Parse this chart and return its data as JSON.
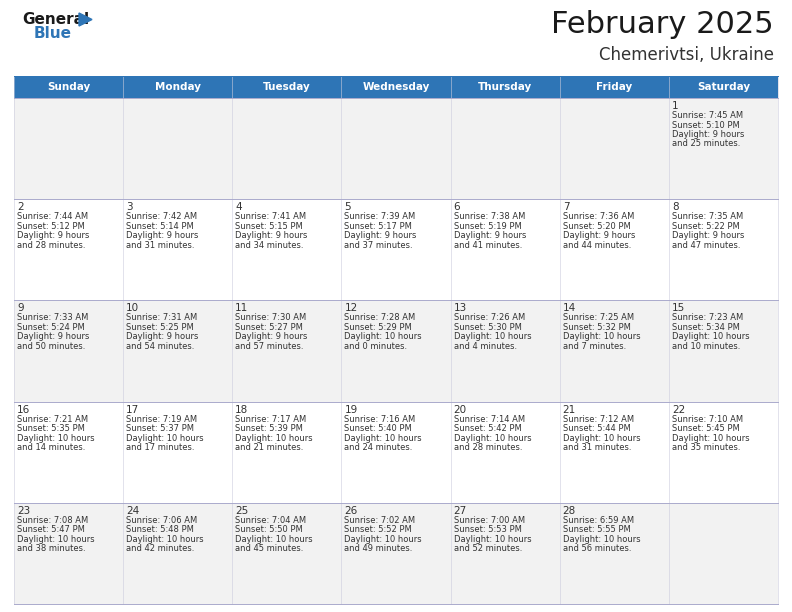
{
  "title": "February 2025",
  "subtitle": "Chemerivtsi, Ukraine",
  "header_bg": "#2E75B6",
  "header_text_color": "#FFFFFF",
  "row_bg_odd": "#F2F2F2",
  "row_bg_even": "#FFFFFF",
  "text_color": "#333333",
  "separator_color": "#AAAACC",
  "days_of_week": [
    "Sunday",
    "Monday",
    "Tuesday",
    "Wednesday",
    "Thursday",
    "Friday",
    "Saturday"
  ],
  "calendar_data": [
    [
      null,
      null,
      null,
      null,
      null,
      null,
      {
        "day": "1",
        "sunrise": "7:45 AM",
        "sunset": "5:10 PM",
        "daylight_h": "9 hours",
        "daylight_m": "and 25 minutes."
      }
    ],
    [
      {
        "day": "2",
        "sunrise": "7:44 AM",
        "sunset": "5:12 PM",
        "daylight_h": "9 hours",
        "daylight_m": "and 28 minutes."
      },
      {
        "day": "3",
        "sunrise": "7:42 AM",
        "sunset": "5:14 PM",
        "daylight_h": "9 hours",
        "daylight_m": "and 31 minutes."
      },
      {
        "day": "4",
        "sunrise": "7:41 AM",
        "sunset": "5:15 PM",
        "daylight_h": "9 hours",
        "daylight_m": "and 34 minutes."
      },
      {
        "day": "5",
        "sunrise": "7:39 AM",
        "sunset": "5:17 PM",
        "daylight_h": "9 hours",
        "daylight_m": "and 37 minutes."
      },
      {
        "day": "6",
        "sunrise": "7:38 AM",
        "sunset": "5:19 PM",
        "daylight_h": "9 hours",
        "daylight_m": "and 41 minutes."
      },
      {
        "day": "7",
        "sunrise": "7:36 AM",
        "sunset": "5:20 PM",
        "daylight_h": "9 hours",
        "daylight_m": "and 44 minutes."
      },
      {
        "day": "8",
        "sunrise": "7:35 AM",
        "sunset": "5:22 PM",
        "daylight_h": "9 hours",
        "daylight_m": "and 47 minutes."
      }
    ],
    [
      {
        "day": "9",
        "sunrise": "7:33 AM",
        "sunset": "5:24 PM",
        "daylight_h": "9 hours",
        "daylight_m": "and 50 minutes."
      },
      {
        "day": "10",
        "sunrise": "7:31 AM",
        "sunset": "5:25 PM",
        "daylight_h": "9 hours",
        "daylight_m": "and 54 minutes."
      },
      {
        "day": "11",
        "sunrise": "7:30 AM",
        "sunset": "5:27 PM",
        "daylight_h": "9 hours",
        "daylight_m": "and 57 minutes."
      },
      {
        "day": "12",
        "sunrise": "7:28 AM",
        "sunset": "5:29 PM",
        "daylight_h": "10 hours",
        "daylight_m": "and 0 minutes."
      },
      {
        "day": "13",
        "sunrise": "7:26 AM",
        "sunset": "5:30 PM",
        "daylight_h": "10 hours",
        "daylight_m": "and 4 minutes."
      },
      {
        "day": "14",
        "sunrise": "7:25 AM",
        "sunset": "5:32 PM",
        "daylight_h": "10 hours",
        "daylight_m": "and 7 minutes."
      },
      {
        "day": "15",
        "sunrise": "7:23 AM",
        "sunset": "5:34 PM",
        "daylight_h": "10 hours",
        "daylight_m": "and 10 minutes."
      }
    ],
    [
      {
        "day": "16",
        "sunrise": "7:21 AM",
        "sunset": "5:35 PM",
        "daylight_h": "10 hours",
        "daylight_m": "and 14 minutes."
      },
      {
        "day": "17",
        "sunrise": "7:19 AM",
        "sunset": "5:37 PM",
        "daylight_h": "10 hours",
        "daylight_m": "and 17 minutes."
      },
      {
        "day": "18",
        "sunrise": "7:17 AM",
        "sunset": "5:39 PM",
        "daylight_h": "10 hours",
        "daylight_m": "and 21 minutes."
      },
      {
        "day": "19",
        "sunrise": "7:16 AM",
        "sunset": "5:40 PM",
        "daylight_h": "10 hours",
        "daylight_m": "and 24 minutes."
      },
      {
        "day": "20",
        "sunrise": "7:14 AM",
        "sunset": "5:42 PM",
        "daylight_h": "10 hours",
        "daylight_m": "and 28 minutes."
      },
      {
        "day": "21",
        "sunrise": "7:12 AM",
        "sunset": "5:44 PM",
        "daylight_h": "10 hours",
        "daylight_m": "and 31 minutes."
      },
      {
        "day": "22",
        "sunrise": "7:10 AM",
        "sunset": "5:45 PM",
        "daylight_h": "10 hours",
        "daylight_m": "and 35 minutes."
      }
    ],
    [
      {
        "day": "23",
        "sunrise": "7:08 AM",
        "sunset": "5:47 PM",
        "daylight_h": "10 hours",
        "daylight_m": "and 38 minutes."
      },
      {
        "day": "24",
        "sunrise": "7:06 AM",
        "sunset": "5:48 PM",
        "daylight_h": "10 hours",
        "daylight_m": "and 42 minutes."
      },
      {
        "day": "25",
        "sunrise": "7:04 AM",
        "sunset": "5:50 PM",
        "daylight_h": "10 hours",
        "daylight_m": "and 45 minutes."
      },
      {
        "day": "26",
        "sunrise": "7:02 AM",
        "sunset": "5:52 PM",
        "daylight_h": "10 hours",
        "daylight_m": "and 49 minutes."
      },
      {
        "day": "27",
        "sunrise": "7:00 AM",
        "sunset": "5:53 PM",
        "daylight_h": "10 hours",
        "daylight_m": "and 52 minutes."
      },
      {
        "day": "28",
        "sunrise": "6:59 AM",
        "sunset": "5:55 PM",
        "daylight_h": "10 hours",
        "daylight_m": "and 56 minutes."
      },
      null
    ]
  ]
}
